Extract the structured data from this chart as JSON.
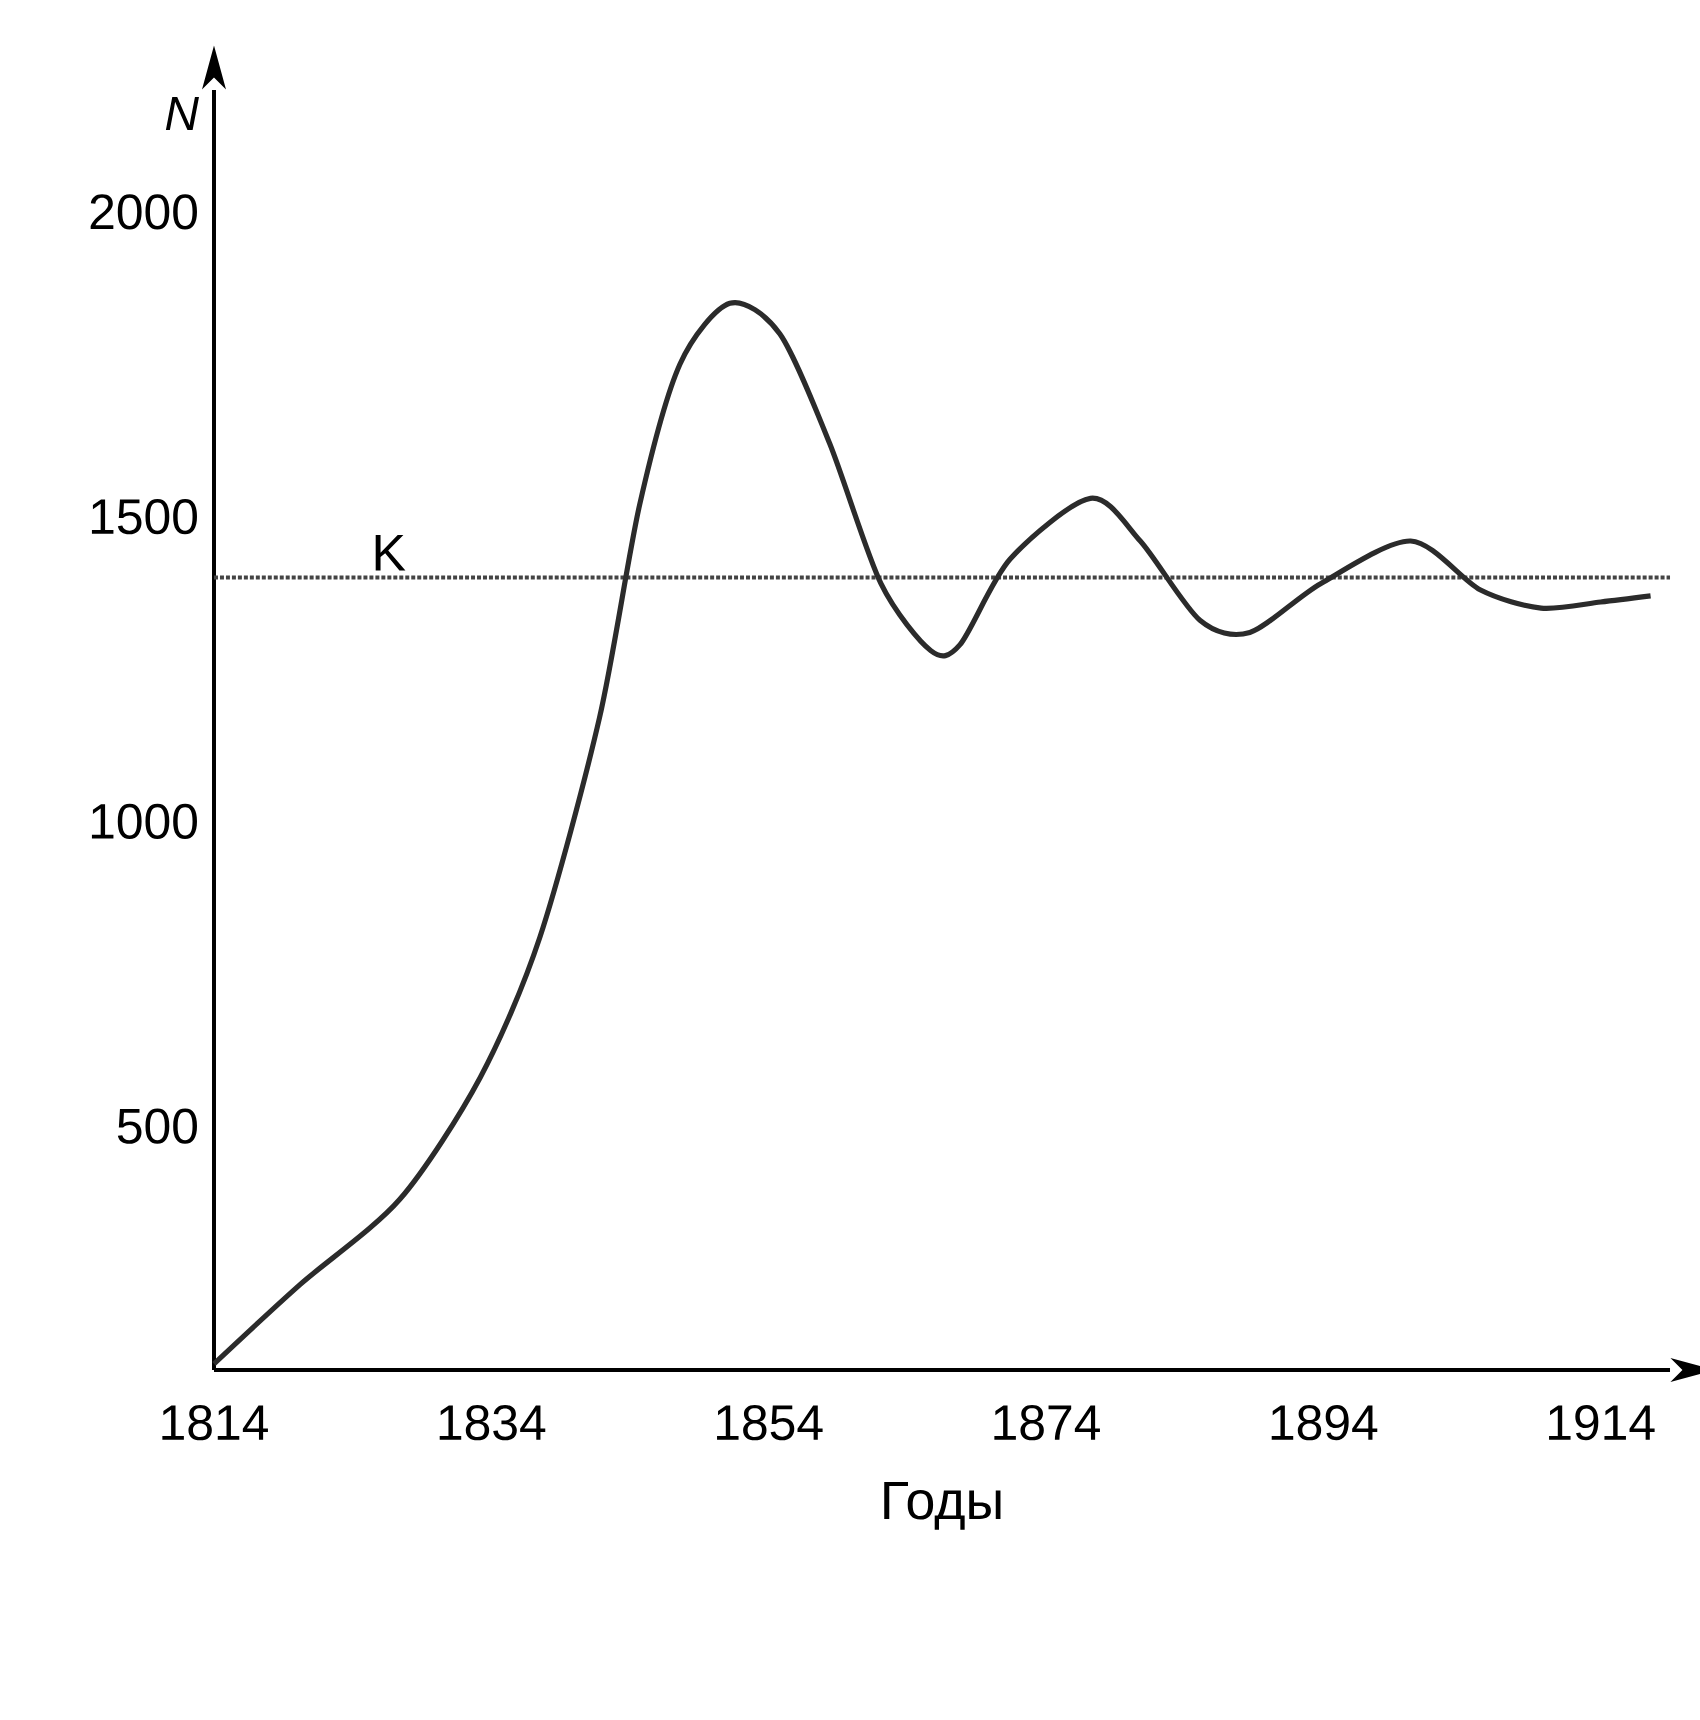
{
  "chart_data": {
    "type": "line",
    "xlabel": "Годы",
    "ylabel": "N",
    "x": [
      1814,
      1820.2,
      1827.4,
      1833.2,
      1837.5,
      1841.8,
      1844.7,
      1847.6,
      1851.2,
      1854.8,
      1858.4,
      1862.1,
      1865.7,
      1867.8,
      1871.4,
      1877.2,
      1880.8,
      1885.1,
      1888.7,
      1893.8,
      1900.3,
      1905.3,
      1909.7,
      1914,
      1917.6
    ],
    "values": [
      110,
      240,
      380,
      580,
      810,
      1170,
      1520,
      1750,
      1850,
      1800,
      1620,
      1390,
      1280,
      1290,
      1430,
      1530,
      1460,
      1330,
      1310,
      1390,
      1460,
      1380,
      1350,
      1360,
      1370
    ],
    "color": "#2b2b2b",
    "line_style": "solid",
    "marker": "none",
    "xlim": [
      1814,
      1919
    ],
    "ylim": [
      100,
      2200
    ],
    "xticks": [
      1814,
      1834,
      1854,
      1874,
      1894,
      1914
    ],
    "yticks": [
      500,
      1000,
      1500,
      2000
    ],
    "ref_lines": [
      {
        "axis": "y",
        "value": 1400,
        "label": "K",
        "line_style": "dotted",
        "color": "#444444"
      }
    ]
  }
}
